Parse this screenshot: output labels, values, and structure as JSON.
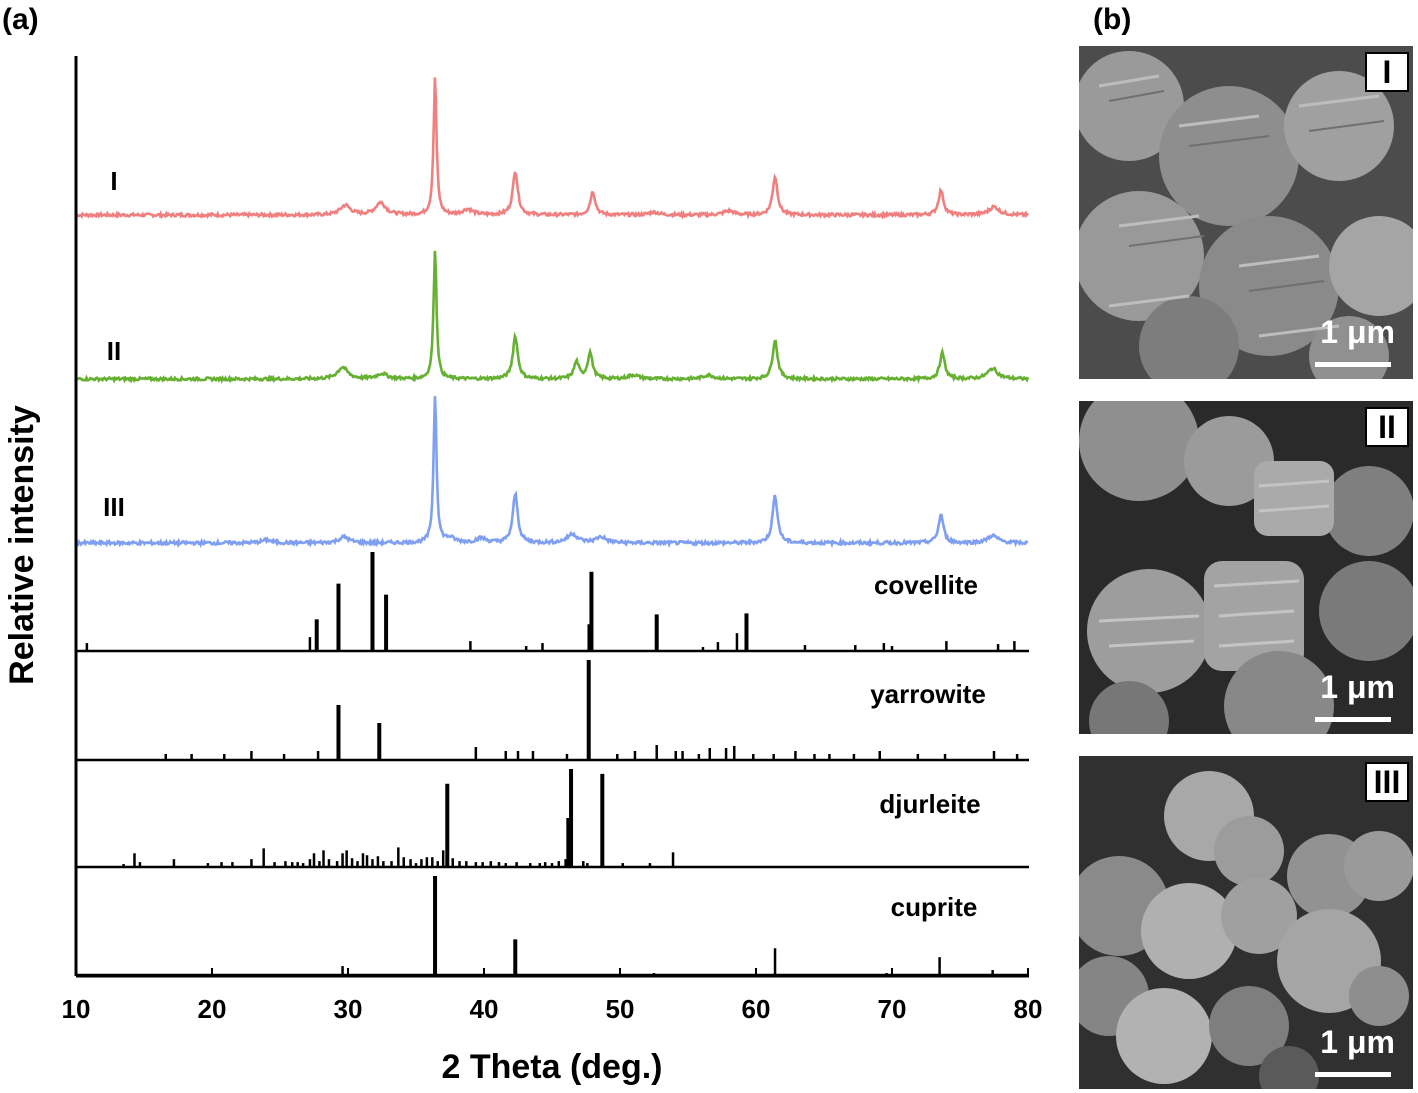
{
  "panel_labels": {
    "a": "(a)",
    "b": "(b)"
  },
  "chart_data": {
    "type": "line",
    "xlabel": "2 Theta (deg.)",
    "ylabel": "Relative intensity",
    "xlim": [
      10,
      80
    ],
    "xticks": [
      10,
      20,
      30,
      40,
      50,
      60,
      70,
      80
    ],
    "grid": false,
    "colors": {
      "I": "#f08080",
      "II": "#66b032",
      "III": "#7f9ff0",
      "ref": "#000000"
    },
    "series": [
      {
        "name": "I",
        "color": "#f08080",
        "peaks": [
          [
            29.8,
            0.07
          ],
          [
            32.4,
            0.09
          ],
          [
            36.4,
            1.0
          ],
          [
            38.8,
            0.04
          ],
          [
            42.3,
            0.32
          ],
          [
            48.0,
            0.17
          ],
          [
            52.5,
            0.02
          ],
          [
            58.0,
            0.03
          ],
          [
            61.4,
            0.28
          ],
          [
            73.6,
            0.18
          ],
          [
            77.5,
            0.06
          ]
        ]
      },
      {
        "name": "II",
        "color": "#66b032",
        "peaks": [
          [
            29.6,
            0.09
          ],
          [
            32.5,
            0.04
          ],
          [
            36.4,
            1.0
          ],
          [
            42.3,
            0.33
          ],
          [
            46.8,
            0.13
          ],
          [
            47.8,
            0.2
          ],
          [
            51.0,
            0.03
          ],
          [
            56.5,
            0.03
          ],
          [
            61.4,
            0.3
          ],
          [
            73.7,
            0.2
          ],
          [
            77.4,
            0.08
          ]
        ]
      },
      {
        "name": "III",
        "color": "#7f9ff0",
        "peaks": [
          [
            24.0,
            0.02
          ],
          [
            29.7,
            0.04
          ],
          [
            36.4,
            1.0
          ],
          [
            37.5,
            0.03
          ],
          [
            39.8,
            0.03
          ],
          [
            42.3,
            0.33
          ],
          [
            46.5,
            0.06
          ],
          [
            48.6,
            0.04
          ],
          [
            61.4,
            0.32
          ],
          [
            73.6,
            0.19
          ],
          [
            77.4,
            0.05
          ]
        ]
      }
    ],
    "references": [
      {
        "name": "covellite",
        "sticks": [
          [
            10.8,
            0.08
          ],
          [
            27.2,
            0.14
          ],
          [
            27.7,
            0.32
          ],
          [
            29.3,
            0.68
          ],
          [
            31.8,
            1.0
          ],
          [
            32.8,
            0.57
          ],
          [
            39.0,
            0.1
          ],
          [
            43.1,
            0.05
          ],
          [
            44.3,
            0.08
          ],
          [
            47.7,
            0.27
          ],
          [
            47.9,
            0.8
          ],
          [
            52.7,
            0.37
          ],
          [
            56.1,
            0.04
          ],
          [
            57.2,
            0.09
          ],
          [
            58.6,
            0.18
          ],
          [
            59.3,
            0.38
          ],
          [
            63.6,
            0.06
          ],
          [
            67.3,
            0.06
          ],
          [
            69.4,
            0.08
          ],
          [
            70.0,
            0.05
          ],
          [
            74.0,
            0.1
          ],
          [
            77.8,
            0.07
          ],
          [
            79.0,
            0.1
          ]
        ]
      },
      {
        "name": "yarrowite",
        "sticks": [
          [
            16.6,
            0.06
          ],
          [
            18.5,
            0.06
          ],
          [
            20.9,
            0.06
          ],
          [
            22.9,
            0.09
          ],
          [
            25.3,
            0.06
          ],
          [
            27.8,
            0.09
          ],
          [
            29.3,
            0.55
          ],
          [
            32.3,
            0.37
          ],
          [
            39.4,
            0.13
          ],
          [
            41.6,
            0.09
          ],
          [
            42.5,
            0.09
          ],
          [
            43.6,
            0.09
          ],
          [
            46.1,
            0.06
          ],
          [
            47.7,
            1.0
          ],
          [
            49.8,
            0.06
          ],
          [
            51.1,
            0.09
          ],
          [
            52.7,
            0.15
          ],
          [
            54.1,
            0.09
          ],
          [
            54.6,
            0.09
          ],
          [
            55.8,
            0.06
          ],
          [
            56.6,
            0.12
          ],
          [
            57.8,
            0.12
          ],
          [
            58.4,
            0.14
          ],
          [
            59.8,
            0.06
          ],
          [
            61.3,
            0.06
          ],
          [
            62.9,
            0.09
          ],
          [
            64.3,
            0.06
          ],
          [
            65.4,
            0.06
          ],
          [
            67.2,
            0.06
          ],
          [
            69.1,
            0.09
          ],
          [
            71.9,
            0.06
          ],
          [
            73.9,
            0.06
          ],
          [
            77.5,
            0.09
          ],
          [
            79.2,
            0.06
          ]
        ]
      },
      {
        "name": "djurleite",
        "sticks": [
          [
            13.5,
            0.03
          ],
          [
            14.3,
            0.14
          ],
          [
            14.7,
            0.05
          ],
          [
            17.2,
            0.08
          ],
          [
            19.7,
            0.04
          ],
          [
            20.7,
            0.05
          ],
          [
            21.5,
            0.05
          ],
          [
            22.9,
            0.08
          ],
          [
            23.8,
            0.19
          ],
          [
            24.6,
            0.05
          ],
          [
            25.4,
            0.06
          ],
          [
            25.9,
            0.05
          ],
          [
            26.3,
            0.05
          ],
          [
            26.7,
            0.04
          ],
          [
            27.2,
            0.08
          ],
          [
            27.5,
            0.14
          ],
          [
            27.9,
            0.06
          ],
          [
            28.2,
            0.17
          ],
          [
            28.6,
            0.08
          ],
          [
            29.2,
            0.06
          ],
          [
            29.6,
            0.14
          ],
          [
            29.9,
            0.17
          ],
          [
            30.3,
            0.09
          ],
          [
            30.7,
            0.06
          ],
          [
            31.1,
            0.14
          ],
          [
            31.4,
            0.12
          ],
          [
            31.8,
            0.08
          ],
          [
            32.2,
            0.11
          ],
          [
            32.6,
            0.06
          ],
          [
            33.2,
            0.06
          ],
          [
            33.7,
            0.2
          ],
          [
            34.1,
            0.1
          ],
          [
            34.6,
            0.08
          ],
          [
            35.0,
            0.04
          ],
          [
            35.4,
            0.08
          ],
          [
            35.8,
            0.1
          ],
          [
            36.2,
            0.1
          ],
          [
            36.6,
            0.06
          ],
          [
            37.0,
            0.17
          ],
          [
            37.3,
            0.85
          ],
          [
            37.7,
            0.09
          ],
          [
            38.2,
            0.06
          ],
          [
            38.7,
            0.06
          ],
          [
            39.4,
            0.05
          ],
          [
            39.9,
            0.05
          ],
          [
            40.5,
            0.06
          ],
          [
            41.1,
            0.05
          ],
          [
            41.6,
            0.04
          ],
          [
            42.4,
            0.05
          ],
          [
            43.4,
            0.04
          ],
          [
            44.1,
            0.04
          ],
          [
            44.5,
            0.05
          ],
          [
            45.0,
            0.04
          ],
          [
            45.5,
            0.06
          ],
          [
            46.0,
            0.08
          ],
          [
            46.2,
            0.5
          ],
          [
            46.4,
            1.0
          ],
          [
            47.3,
            0.06
          ],
          [
            47.6,
            0.04
          ],
          [
            48.7,
            0.95
          ],
          [
            50.2,
            0.04
          ],
          [
            52.2,
            0.04
          ],
          [
            53.9,
            0.15
          ]
        ]
      },
      {
        "name": "cuprite",
        "sticks": [
          [
            29.6,
            0.09
          ],
          [
            36.4,
            1.0
          ],
          [
            42.3,
            0.36
          ],
          [
            52.5,
            0.02
          ],
          [
            61.4,
            0.27
          ],
          [
            69.6,
            0.02
          ],
          [
            73.5,
            0.18
          ],
          [
            77.4,
            0.05
          ]
        ]
      }
    ]
  },
  "sem_panels": [
    {
      "label": "I",
      "scale": "1 μm"
    },
    {
      "label": "II",
      "scale": "1 μm"
    },
    {
      "label": "III",
      "scale": "1 μm"
    }
  ]
}
